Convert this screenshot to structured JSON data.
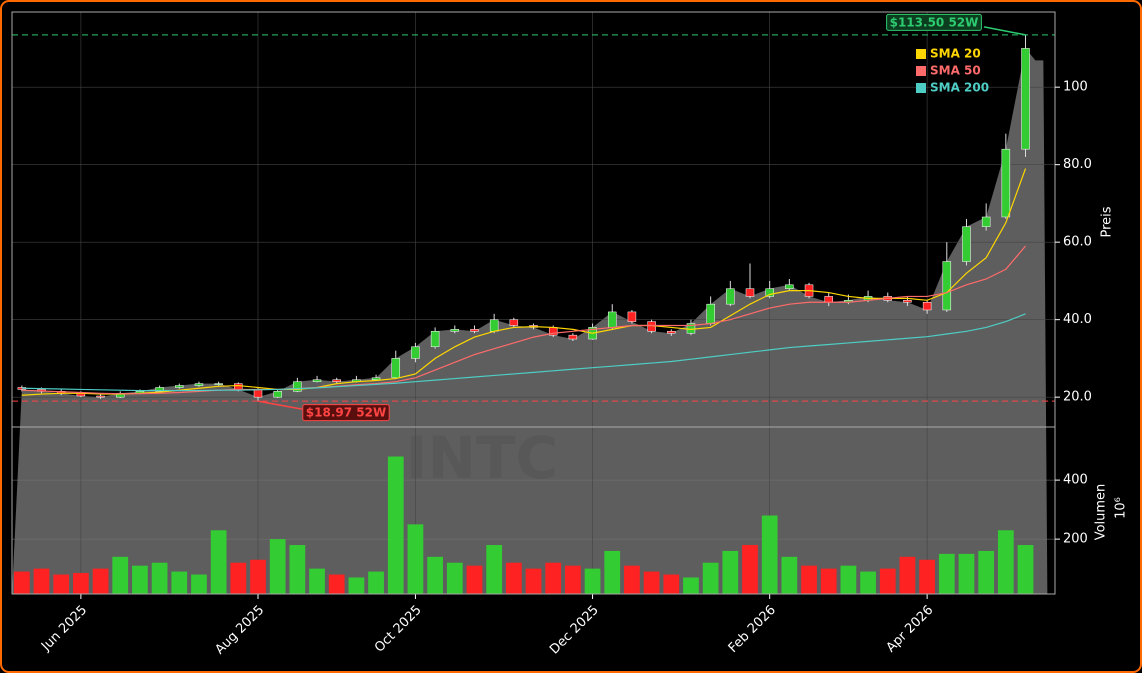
{
  "chart_data": {
    "type": "candlestick",
    "watermark": "INTC",
    "categories": [
      null,
      null,
      null,
      "Jun 2025",
      null,
      null,
      null,
      null,
      null,
      null,
      null,
      null,
      "Aug 2025",
      null,
      null,
      null,
      null,
      null,
      null,
      null,
      "Oct 2025",
      null,
      null,
      null,
      null,
      null,
      null,
      null,
      null,
      "Dec 2025",
      null,
      null,
      null,
      null,
      null,
      null,
      null,
      null,
      "Feb 2026",
      null,
      null,
      null,
      null,
      null,
      null,
      null,
      "Apr 2026",
      null,
      null,
      null,
      null,
      null
    ],
    "open": [
      22.5,
      22,
      21.5,
      21,
      20.3,
      20,
      21,
      21.5,
      22.5,
      23,
      23.5,
      23.5,
      22,
      20,
      21.5,
      24,
      24.5,
      24,
      24.5,
      25,
      30,
      33,
      37,
      37.5,
      37,
      40,
      38.5,
      38,
      36,
      35,
      38,
      42,
      39.5,
      37,
      36.5,
      39,
      44,
      48,
      46,
      48,
      49,
      46,
      44.5,
      45,
      46,
      45,
      44.5,
      42.5,
      55,
      64,
      66.5,
      84
    ],
    "high": [
      23,
      22.5,
      22,
      21.5,
      21,
      21.5,
      22,
      23,
      23.5,
      24,
      24,
      23.8,
      22.5,
      22,
      25,
      25.5,
      25,
      25.5,
      25.8,
      32,
      34,
      38,
      38.5,
      38.5,
      41.5,
      40.5,
      39,
      38.5,
      36.5,
      39,
      44,
      42.5,
      40,
      37.5,
      40,
      46,
      50,
      54.5,
      50,
      50.5,
      49.5,
      47,
      46.5,
      47.5,
      47,
      46,
      45,
      60,
      66,
      70,
      88,
      113.5
    ],
    "low": [
      21.5,
      21,
      20.5,
      20,
      19.6,
      19.8,
      20.8,
      21.3,
      22.2,
      22.7,
      23,
      21.5,
      18.97,
      19.8,
      21.3,
      23.8,
      23.5,
      23.8,
      24.2,
      24.8,
      29,
      32.5,
      36.5,
      36.5,
      36.5,
      38,
      37.5,
      35.5,
      34.5,
      34.8,
      37.5,
      39,
      36.5,
      35.8,
      36,
      38.5,
      43.5,
      45.5,
      45.5,
      47.5,
      45.5,
      43.5,
      44,
      44.5,
      44.5,
      43.5,
      41.5,
      42,
      54,
      63,
      66,
      82
    ],
    "close": [
      22,
      21.5,
      21,
      20.3,
      20,
      21,
      21.5,
      22.5,
      23,
      23.5,
      23.5,
      22,
      20,
      21.5,
      24,
      24.5,
      24,
      24.5,
      25,
      30,
      33,
      37,
      37.5,
      37,
      40,
      38.5,
      38,
      36,
      35,
      38,
      42,
      39.5,
      37,
      36.5,
      39,
      44,
      48,
      46,
      48,
      49,
      46,
      44.5,
      45,
      46,
      45,
      44.5,
      42.5,
      55,
      64,
      66.5,
      84,
      110
    ],
    "up_color": "#33cc33",
    "down_color": "#ff2222",
    "area_color": "#5e5e5e",
    "series": [
      {
        "name": "SMA 20",
        "color": "#ffd700",
        "values": [
          20.5,
          20.8,
          21,
          21,
          20.8,
          20.8,
          21,
          21.3,
          21.8,
          22.3,
          22.8,
          23,
          22.5,
          22,
          22,
          22.5,
          23.5,
          24,
          24.3,
          24.8,
          26,
          30,
          33,
          35.5,
          37,
          38,
          38.2,
          38,
          37.5,
          36.5,
          37.5,
          38.5,
          38.5,
          38,
          37.5,
          38,
          41,
          44,
          46.5,
          47.5,
          47.5,
          47,
          46,
          45.5,
          45.5,
          45.5,
          45,
          47,
          52,
          56,
          65,
          79
        ]
      },
      {
        "name": "SMA 50",
        "color": "#ff6b6b",
        "values": [
          21.8,
          21.6,
          21.4,
          21.2,
          21,
          20.9,
          20.9,
          21,
          21.2,
          21.5,
          21.8,
          22,
          22,
          22,
          22.2,
          22.5,
          22.8,
          23.2,
          23.5,
          24,
          25,
          27,
          29,
          31,
          32.5,
          34,
          35.5,
          36.5,
          37,
          37.5,
          38,
          38.5,
          38.5,
          38.5,
          38.5,
          39,
          40,
          41.5,
          43,
          44,
          44.5,
          44.5,
          44.5,
          45,
          45.5,
          46,
          46,
          47,
          49,
          50.5,
          53,
          59
        ]
      },
      {
        "name": "SMA 200",
        "color": "#4ecdc4",
        "values": [
          22.3,
          22.2,
          22.1,
          22,
          21.9,
          21.8,
          21.7,
          21.7,
          21.7,
          21.7,
          21.8,
          21.8,
          21.9,
          22,
          22.2,
          22.4,
          22.7,
          23,
          23.3,
          23.6,
          24,
          24.4,
          24.8,
          25.2,
          25.6,
          26,
          26.4,
          26.8,
          27.2,
          27.6,
          28,
          28.4,
          28.8,
          29.2,
          29.8,
          30.4,
          31,
          31.6,
          32.2,
          32.8,
          33.2,
          33.6,
          34,
          34.4,
          34.8,
          35.2,
          35.6,
          36.3,
          37,
          38,
          39.5,
          41.5
        ]
      }
    ],
    "ylabel": "Preis",
    "ylim": [
      12.3,
      119.4
    ],
    "yticks": [
      {
        "value": 20,
        "label": "20.0"
      },
      {
        "value": 40,
        "label": "40.0"
      },
      {
        "value": 60,
        "label": "60.0"
      },
      {
        "value": 80,
        "label": "80.0"
      },
      100
    ],
    "grid": true,
    "legend": "upper right",
    "annotations": [
      {
        "text": "$113.50 52W",
        "value": 113.5,
        "color": "#2ecc71"
      },
      {
        "text": "$18.97 52W",
        "value": 18.97,
        "color": "#ff4444"
      }
    ],
    "volume": {
      "label": "Volumen",
      "offset": "10⁶",
      "ylim": [
        14,
        580
      ],
      "yticks": [
        200,
        400
      ],
      "values": [
        90,
        100,
        80,
        85,
        100,
        140,
        110,
        120,
        90,
        80,
        230,
        120,
        130,
        200,
        180,
        100,
        80,
        70,
        90,
        480,
        250,
        140,
        120,
        110,
        180,
        120,
        100,
        120,
        110,
        100,
        160,
        110,
        90,
        80,
        70,
        120,
        160,
        180,
        280,
        140,
        110,
        100,
        110,
        90,
        100,
        140,
        130,
        150,
        150,
        160,
        230,
        180
      ]
    }
  }
}
